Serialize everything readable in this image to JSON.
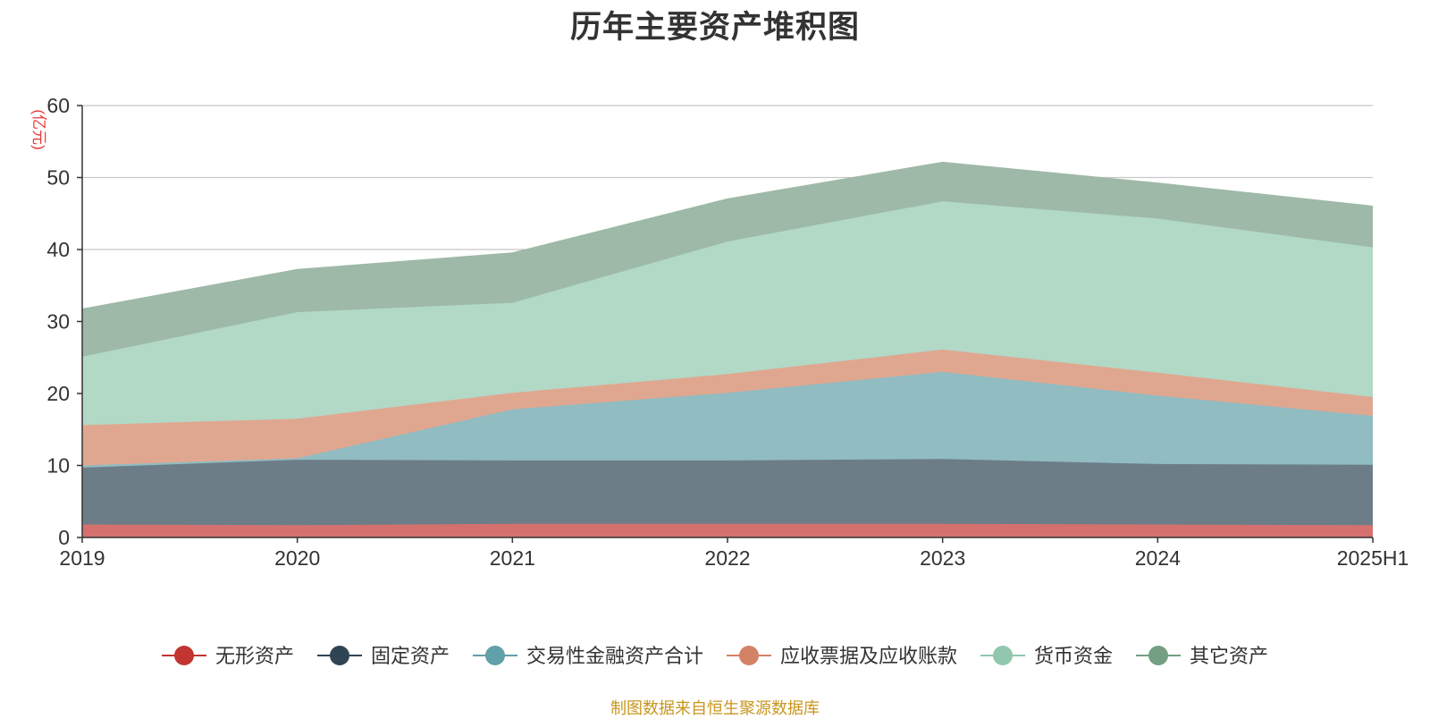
{
  "chart_data": {
    "type": "area",
    "stacked": true,
    "title": "历年主要资产堆积图",
    "ylabel": "(亿元)",
    "xlabel": "",
    "categories": [
      "2019",
      "2020",
      "2021",
      "2022",
      "2023",
      "2024",
      "2025H1"
    ],
    "ylim": [
      0,
      60
    ],
    "yticks": [
      0,
      10,
      20,
      30,
      40,
      50,
      60
    ],
    "grid": true,
    "legend_position": "bottom",
    "series": [
      {
        "name": "无形资产",
        "color": "#c23531",
        "fill": "#d4716e",
        "values": [
          1.8,
          1.7,
          1.9,
          1.9,
          1.9,
          1.8,
          1.7
        ]
      },
      {
        "name": "固定资产",
        "color": "#2f4554",
        "fill": "#6d7d88",
        "values": [
          7.9,
          9.1,
          8.8,
          8.8,
          9.0,
          8.4,
          8.4
        ]
      },
      {
        "name": "交易性金融资产合计",
        "color": "#61a0a8",
        "fill": "#90bcc2",
        "values": [
          0.3,
          0.2,
          7.1,
          9.4,
          12.1,
          9.5,
          6.8
        ]
      },
      {
        "name": "应收票据及应收账款",
        "color": "#d48265",
        "fill": "#e0a790",
        "values": [
          5.6,
          5.5,
          2.3,
          2.6,
          3.1,
          3.2,
          2.6
        ]
      },
      {
        "name": "货币资金",
        "color": "#91c7ae",
        "fill": "#b2d8c6",
        "values": [
          9.5,
          14.8,
          12.5,
          18.4,
          20.6,
          21.4,
          20.8
        ]
      },
      {
        "name": "其它资产",
        "color": "#749f83",
        "fill": "#9eb9a7",
        "values": [
          6.6,
          5.9,
          6.9,
          5.9,
          5.4,
          4.9,
          5.7
        ]
      }
    ]
  },
  "source_text": "制图数据来自恒生聚源数据库"
}
